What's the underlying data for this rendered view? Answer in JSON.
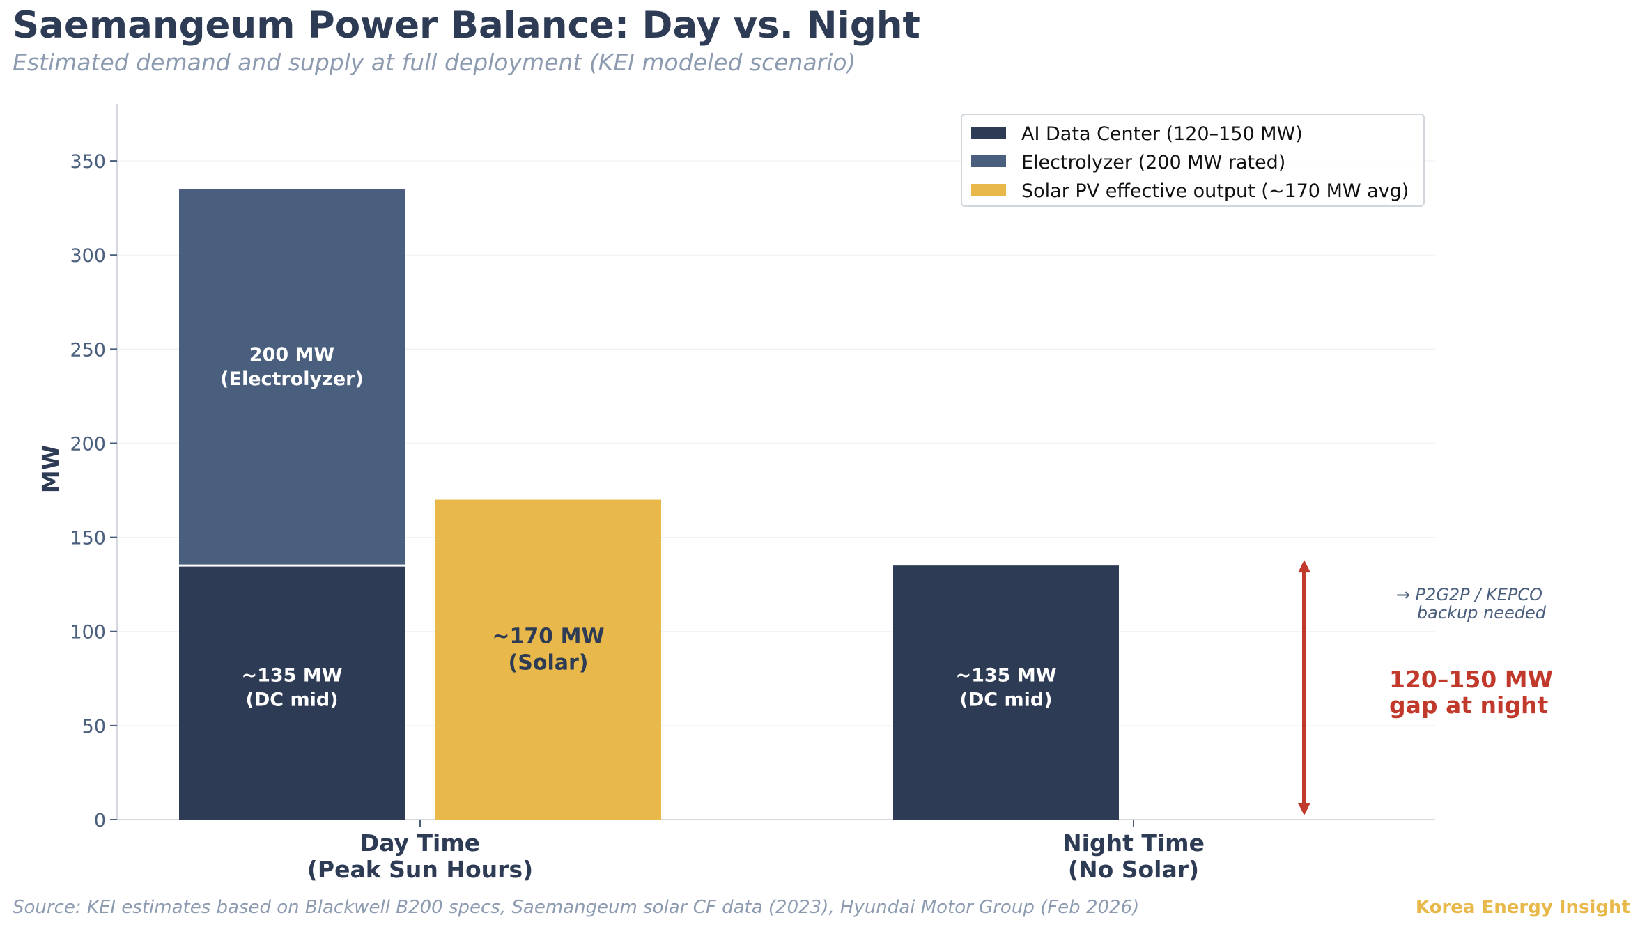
{
  "header": {
    "title": "Saemangeum Power Balance: Day vs. Night",
    "subtitle": "Estimated demand and supply at full deployment (KEI modeled scenario)"
  },
  "footer": {
    "source": "Source: KEI estimates based on Blackwell B200 specs, Saemangeum solar CF data (2023), Hyundai Motor Group (Feb 2026)",
    "brand": "Korea Energy Insight"
  },
  "colors": {
    "dc": "#2e3b55",
    "electrolyzer": "#4a5f7e",
    "solar": "#e8b84a",
    "gap": "#c0392b",
    "axis_text": "#4a5f7e",
    "dark_text": "#2d3b55"
  },
  "chart_data": {
    "type": "bar",
    "ylabel": "MW",
    "ylim": [
      0,
      380
    ],
    "yticks": [
      0,
      50,
      100,
      150,
      200,
      250,
      300,
      350
    ],
    "grid": true,
    "legend_position": "top-right",
    "categories": [
      {
        "line1": "Day Time",
        "line2": "(Peak Sun Hours)"
      },
      {
        "line1": "Night Time",
        "line2": "(No Solar)"
      }
    ],
    "series": [
      {
        "name": "AI Data Center (120–150 MW)",
        "key": "dc",
        "values": [
          135,
          135
        ]
      },
      {
        "name": "Electrolyzer (200 MW rated)",
        "key": "electrolyzer",
        "values": [
          200,
          0
        ]
      },
      {
        "name": "Solar PV effective output (~170 MW avg)",
        "key": "solar",
        "values": [
          170,
          0
        ]
      }
    ],
    "bar_labels": {
      "day_dc": [
        "~135 MW",
        "(DC mid)"
      ],
      "day_electrolyzer": [
        "200 MW",
        "(Electrolyzer)"
      ],
      "day_solar": [
        "~170 MW",
        "(Solar)"
      ],
      "night_dc": [
        "~135 MW",
        "(DC mid)"
      ]
    },
    "annotations": {
      "gap_range": [
        0,
        135
      ],
      "gap_label": [
        "120–150 MW",
        "gap at night"
      ],
      "backup_note": [
        "→ P2G2P / KEPCO",
        "backup needed"
      ]
    }
  }
}
